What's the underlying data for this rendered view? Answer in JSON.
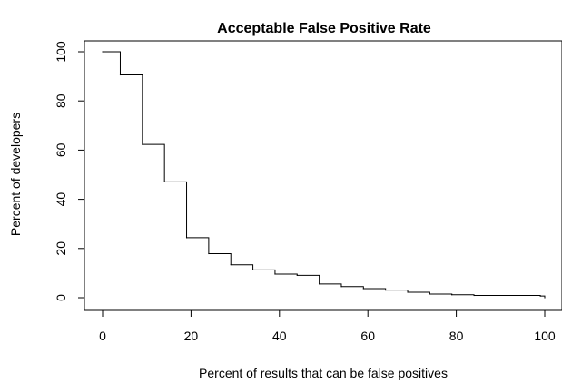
{
  "chart_data": {
    "type": "line",
    "title": "Acceptable False Positive Rate",
    "xlabel": "Percent of results that can be false positives",
    "ylabel": "Percent of developers",
    "xlim": [
      0,
      100
    ],
    "ylim": [
      0,
      100
    ],
    "x_ticks": [
      0,
      20,
      40,
      60,
      80,
      100
    ],
    "y_ticks": [
      0,
      20,
      40,
      60,
      80,
      100
    ],
    "grid": false,
    "legend": "none",
    "line_style": "step",
    "line_color": "#000000",
    "series": [
      {
        "x": [
          0,
          4,
          9,
          14,
          19,
          24,
          29,
          34,
          39,
          44,
          49,
          54,
          59,
          64,
          69,
          74,
          79,
          84,
          99,
          100
        ],
        "y": [
          100,
          90.6,
          62.3,
          47.1,
          24.4,
          17.9,
          13.4,
          11.3,
          9.6,
          9.1,
          5.6,
          4.5,
          3.7,
          3.1,
          2.2,
          1.5,
          1.2,
          0.9,
          0.7,
          0
        ]
      }
    ]
  }
}
